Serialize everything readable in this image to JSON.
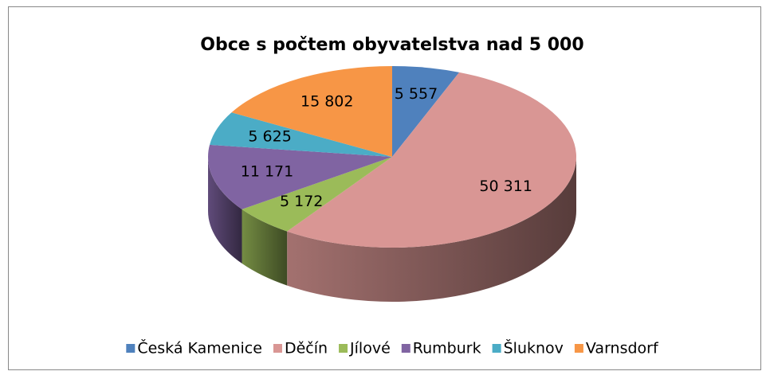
{
  "chart_data": {
    "type": "pie3d",
    "title": "Obce s počtem obyvatelstva nad 5 000",
    "categories": [
      "Česká Kamenice",
      "Děčín",
      "Jílové",
      "Rumburk",
      "Šluknov",
      "Varnsdorf"
    ],
    "values": [
      5557,
      50311,
      5172,
      11171,
      5625,
      15802
    ],
    "value_labels": [
      "5 557",
      "50 311",
      "5 172",
      "11 171",
      "5 625",
      "15 802"
    ],
    "colors": [
      "#4f81bd",
      "#d99694",
      "#9bbb59",
      "#8064a2",
      "#4bacc6",
      "#f79646"
    ],
    "legend": "bottom"
  }
}
